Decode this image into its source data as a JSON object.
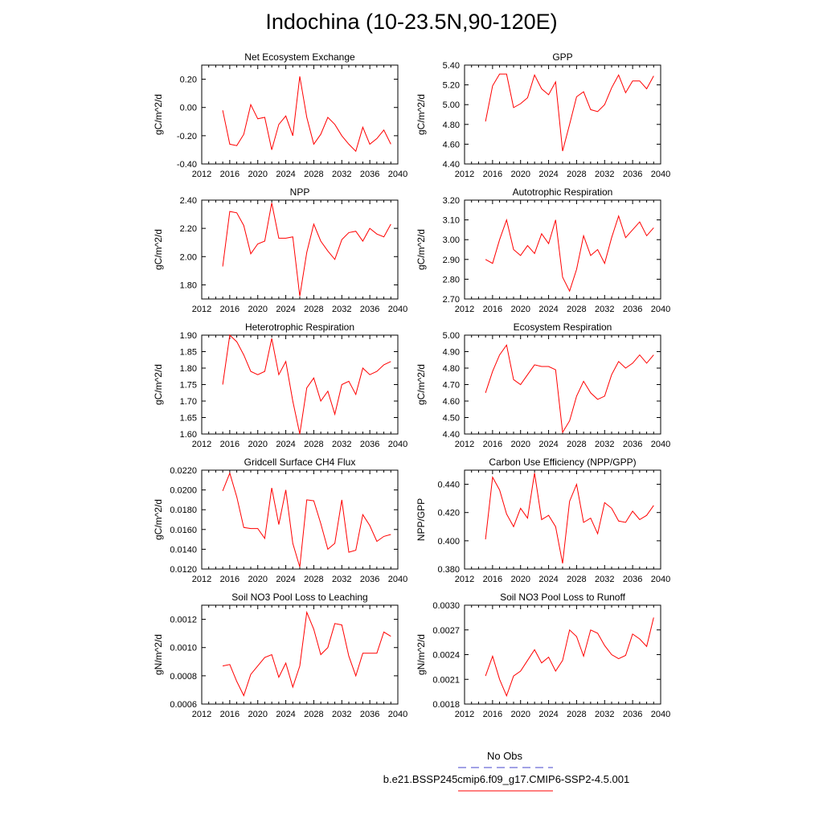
{
  "title": "Indochina (10-23.5N,90-120E)",
  "legend": {
    "obs_label": "No Obs",
    "obs_color": "#4444cc",
    "model_label": "b.e21.BSSP245cmip6.f09_g17.CMIP6-SSP2-4.5.001",
    "model_color": "#ff0000"
  },
  "chart_data": [
    {
      "type": "line",
      "title": "Net Ecosystem Exchange",
      "ylabel": "gC/m^2/d",
      "xlim": [
        2012,
        2040
      ],
      "xticks": [
        2012,
        2016,
        2020,
        2024,
        2028,
        2032,
        2036,
        2040
      ],
      "ylim": [
        -0.4,
        0.3
      ],
      "yticks": [
        "0.20",
        "0.00",
        "-0.20",
        "-0.40"
      ],
      "yticks_values": [
        0.2,
        0.0,
        -0.2,
        -0.4
      ],
      "x": [
        2015,
        2016,
        2017,
        2018,
        2019,
        2020,
        2021,
        2022,
        2023,
        2024,
        2025,
        2026,
        2027,
        2028,
        2029,
        2030,
        2031,
        2032,
        2033,
        2034,
        2035,
        2036,
        2037,
        2038,
        2039
      ],
      "series": [
        {
          "values": [
            -0.02,
            -0.26,
            -0.27,
            -0.19,
            0.02,
            -0.08,
            -0.07,
            -0.3,
            -0.12,
            -0.06,
            -0.2,
            0.22,
            -0.07,
            -0.26,
            -0.19,
            -0.07,
            -0.12,
            -0.2,
            -0.26,
            -0.31,
            -0.14,
            -0.26,
            -0.22,
            -0.16,
            -0.26
          ]
        }
      ]
    },
    {
      "type": "line",
      "title": "GPP",
      "ylabel": "gC/m^2/d",
      "xlim": [
        2012,
        2040
      ],
      "xticks": [
        2012,
        2016,
        2020,
        2024,
        2028,
        2032,
        2036,
        2040
      ],
      "ylim": [
        4.4,
        5.4
      ],
      "yticks": [
        "5.40",
        "5.20",
        "5.00",
        "4.80",
        "4.60",
        "4.40"
      ],
      "yticks_values": [
        5.4,
        5.2,
        5.0,
        4.8,
        4.6,
        4.4
      ],
      "x": [
        2015,
        2016,
        2017,
        2018,
        2019,
        2020,
        2021,
        2022,
        2023,
        2024,
        2025,
        2026,
        2027,
        2028,
        2029,
        2030,
        2031,
        2032,
        2033,
        2034,
        2035,
        2036,
        2037,
        2038,
        2039
      ],
      "series": [
        {
          "values": [
            4.83,
            5.19,
            5.31,
            5.31,
            4.97,
            5.01,
            5.07,
            5.3,
            5.16,
            5.1,
            5.23,
            4.53,
            4.8,
            5.08,
            5.13,
            4.95,
            4.93,
            5.0,
            5.17,
            5.3,
            5.12,
            5.24,
            5.24,
            5.16,
            5.29
          ]
        }
      ]
    },
    {
      "type": "line",
      "title": "NPP",
      "ylabel": "gC/m^2/d",
      "xlim": [
        2012,
        2040
      ],
      "xticks": [
        2012,
        2016,
        2020,
        2024,
        2028,
        2032,
        2036,
        2040
      ],
      "ylim": [
        1.7,
        2.4
      ],
      "yticks": [
        "2.40",
        "2.20",
        "2.00",
        "1.80"
      ],
      "yticks_values": [
        2.4,
        2.2,
        2.0,
        1.8
      ],
      "x": [
        2015,
        2016,
        2017,
        2018,
        2019,
        2020,
        2021,
        2022,
        2023,
        2024,
        2025,
        2026,
        2027,
        2028,
        2029,
        2030,
        2031,
        2032,
        2033,
        2034,
        2035,
        2036,
        2037,
        2038,
        2039
      ],
      "series": [
        {
          "values": [
            1.93,
            2.32,
            2.31,
            2.22,
            2.02,
            2.09,
            2.11,
            2.38,
            2.13,
            2.13,
            2.14,
            1.72,
            2.03,
            2.23,
            2.11,
            2.04,
            1.98,
            2.12,
            2.17,
            2.18,
            2.11,
            2.2,
            2.16,
            2.14,
            2.23
          ]
        }
      ]
    },
    {
      "type": "line",
      "title": "Autotrophic Respiration",
      "ylabel": "gC/m^2/d",
      "xlim": [
        2012,
        2040
      ],
      "xticks": [
        2012,
        2016,
        2020,
        2024,
        2028,
        2032,
        2036,
        2040
      ],
      "ylim": [
        2.7,
        3.2
      ],
      "yticks": [
        "3.20",
        "3.10",
        "3.00",
        "2.90",
        "2.80",
        "2.70"
      ],
      "yticks_values": [
        3.2,
        3.1,
        3.0,
        2.9,
        2.8,
        2.7
      ],
      "x": [
        2015,
        2016,
        2017,
        2018,
        2019,
        2020,
        2021,
        2022,
        2023,
        2024,
        2025,
        2026,
        2027,
        2028,
        2029,
        2030,
        2031,
        2032,
        2033,
        2034,
        2035,
        2036,
        2037,
        2038,
        2039
      ],
      "series": [
        {
          "values": [
            2.9,
            2.88,
            3.0,
            3.1,
            2.95,
            2.92,
            2.97,
            2.93,
            3.03,
            2.98,
            3.1,
            2.81,
            2.74,
            2.85,
            3.02,
            2.92,
            2.95,
            2.88,
            3.01,
            3.12,
            3.01,
            3.05,
            3.09,
            3.02,
            3.06
          ]
        }
      ]
    },
    {
      "type": "line",
      "title": "Heterotrophic Respiration",
      "ylabel": "gC/m^2/d",
      "xlim": [
        2012,
        2040
      ],
      "xticks": [
        2012,
        2016,
        2020,
        2024,
        2028,
        2032,
        2036,
        2040
      ],
      "ylim": [
        1.6,
        1.9
      ],
      "yticks": [
        "1.90",
        "1.85",
        "1.80",
        "1.75",
        "1.70",
        "1.65",
        "1.60"
      ],
      "yticks_values": [
        1.9,
        1.85,
        1.8,
        1.75,
        1.7,
        1.65,
        1.6
      ],
      "x": [
        2015,
        2016,
        2017,
        2018,
        2019,
        2020,
        2021,
        2022,
        2023,
        2024,
        2025,
        2026,
        2027,
        2028,
        2029,
        2030,
        2031,
        2032,
        2033,
        2034,
        2035,
        2036,
        2037,
        2038,
        2039
      ],
      "series": [
        {
          "values": [
            1.75,
            1.9,
            1.88,
            1.84,
            1.79,
            1.78,
            1.79,
            1.89,
            1.78,
            1.82,
            1.7,
            1.6,
            1.74,
            1.77,
            1.7,
            1.73,
            1.66,
            1.75,
            1.76,
            1.72,
            1.8,
            1.78,
            1.79,
            1.81,
            1.82
          ]
        }
      ]
    },
    {
      "type": "line",
      "title": "Ecosystem Respiration",
      "ylabel": "gC/m^2/d",
      "xlim": [
        2012,
        2040
      ],
      "xticks": [
        2012,
        2016,
        2020,
        2024,
        2028,
        2032,
        2036,
        2040
      ],
      "ylim": [
        4.4,
        5.0
      ],
      "yticks": [
        "5.00",
        "4.90",
        "4.80",
        "4.70",
        "4.60",
        "4.50",
        "4.40"
      ],
      "yticks_values": [
        5.0,
        4.9,
        4.8,
        4.7,
        4.6,
        4.5,
        4.4
      ],
      "x": [
        2015,
        2016,
        2017,
        2018,
        2019,
        2020,
        2021,
        2022,
        2023,
        2024,
        2025,
        2026,
        2027,
        2028,
        2029,
        2030,
        2031,
        2032,
        2033,
        2034,
        2035,
        2036,
        2037,
        2038,
        2039
      ],
      "series": [
        {
          "values": [
            4.65,
            4.78,
            4.88,
            4.94,
            4.73,
            4.7,
            4.76,
            4.82,
            4.81,
            4.81,
            4.79,
            4.41,
            4.48,
            4.63,
            4.72,
            4.65,
            4.61,
            4.63,
            4.76,
            4.84,
            4.8,
            4.83,
            4.88,
            4.83,
            4.88
          ]
        }
      ]
    },
    {
      "type": "line",
      "title": "Gridcell Surface CH4 Flux",
      "ylabel": "gC/m^2/d",
      "xlim": [
        2012,
        2040
      ],
      "xticks": [
        2012,
        2016,
        2020,
        2024,
        2028,
        2032,
        2036,
        2040
      ],
      "ylim": [
        0.012,
        0.022
      ],
      "yticks": [
        "0.0220",
        "0.0200",
        "0.0180",
        "0.0160",
        "0.0140",
        "0.0120"
      ],
      "yticks_values": [
        0.022,
        0.02,
        0.018,
        0.016,
        0.014,
        0.012
      ],
      "x": [
        2015,
        2016,
        2017,
        2018,
        2019,
        2020,
        2021,
        2022,
        2023,
        2024,
        2025,
        2026,
        2027,
        2028,
        2029,
        2030,
        2031,
        2032,
        2033,
        2034,
        2035,
        2036,
        2037,
        2038,
        2039
      ],
      "series": [
        {
          "values": [
            0.0199,
            0.0217,
            0.0193,
            0.0162,
            0.0161,
            0.0161,
            0.0151,
            0.0202,
            0.0165,
            0.02,
            0.0146,
            0.0122,
            0.019,
            0.0189,
            0.0166,
            0.014,
            0.0146,
            0.019,
            0.0137,
            0.0139,
            0.0175,
            0.0164,
            0.0148,
            0.0153,
            0.0155
          ]
        }
      ]
    },
    {
      "type": "line",
      "title": "Carbon Use Efficiency (NPP/GPP)",
      "ylabel": "NPP/GPP",
      "xlim": [
        2012,
        2040
      ],
      "xticks": [
        2012,
        2016,
        2020,
        2024,
        2028,
        2032,
        2036,
        2040
      ],
      "ylim": [
        0.38,
        0.45
      ],
      "yticks": [
        "0.440",
        "0.420",
        "0.400",
        "0.380"
      ],
      "yticks_values": [
        0.44,
        0.42,
        0.4,
        0.38
      ],
      "x": [
        2015,
        2016,
        2017,
        2018,
        2019,
        2020,
        2021,
        2022,
        2023,
        2024,
        2025,
        2026,
        2027,
        2028,
        2029,
        2030,
        2031,
        2032,
        2033,
        2034,
        2035,
        2036,
        2037,
        2038,
        2039
      ],
      "series": [
        {
          "values": [
            0.401,
            0.445,
            0.436,
            0.419,
            0.41,
            0.423,
            0.416,
            0.448,
            0.415,
            0.418,
            0.41,
            0.384,
            0.428,
            0.44,
            0.413,
            0.416,
            0.405,
            0.427,
            0.423,
            0.414,
            0.413,
            0.421,
            0.415,
            0.418,
            0.425
          ]
        }
      ]
    },
    {
      "type": "line",
      "title": "Soil NO3 Pool Loss to Leaching",
      "ylabel": "gN/m^2/d",
      "xlim": [
        2012,
        2040
      ],
      "xticks": [
        2012,
        2016,
        2020,
        2024,
        2028,
        2032,
        2036,
        2040
      ],
      "ylim": [
        0.0006,
        0.0013
      ],
      "yticks": [
        "0.0012",
        "0.0010",
        "0.0008",
        "0.0006"
      ],
      "yticks_values": [
        0.0012,
        0.001,
        0.0008,
        0.0006
      ],
      "x": [
        2015,
        2016,
        2017,
        2018,
        2019,
        2020,
        2021,
        2022,
        2023,
        2024,
        2025,
        2026,
        2027,
        2028,
        2029,
        2030,
        2031,
        2032,
        2033,
        2034,
        2035,
        2036,
        2037,
        2038,
        2039
      ],
      "series": [
        {
          "values": [
            0.00087,
            0.00088,
            0.00076,
            0.00066,
            0.00081,
            0.00087,
            0.00093,
            0.00095,
            0.00079,
            0.00089,
            0.00072,
            0.00087,
            0.00125,
            0.00113,
            0.00095,
            0.001,
            0.00117,
            0.00116,
            0.00094,
            0.0008,
            0.00096,
            0.00096,
            0.00096,
            0.00111,
            0.00108
          ]
        }
      ]
    },
    {
      "type": "line",
      "title": "Soil NO3 Pool Loss to Runoff",
      "ylabel": "gN/m^2/d",
      "xlim": [
        2012,
        2040
      ],
      "xticks": [
        2012,
        2016,
        2020,
        2024,
        2028,
        2032,
        2036,
        2040
      ],
      "ylim": [
        0.0018,
        0.003
      ],
      "yticks": [
        "0.0030",
        "0.0027",
        "0.0024",
        "0.0021",
        "0.0018"
      ],
      "yticks_values": [
        0.003,
        0.0027,
        0.0024,
        0.0021,
        0.0018
      ],
      "x": [
        2015,
        2016,
        2017,
        2018,
        2019,
        2020,
        2021,
        2022,
        2023,
        2024,
        2025,
        2026,
        2027,
        2028,
        2029,
        2030,
        2031,
        2032,
        2033,
        2034,
        2035,
        2036,
        2037,
        2038,
        2039
      ],
      "series": [
        {
          "values": [
            0.00214,
            0.00238,
            0.0021,
            0.0019,
            0.00214,
            0.0022,
            0.00233,
            0.00246,
            0.0023,
            0.00237,
            0.0022,
            0.00233,
            0.0027,
            0.00262,
            0.00238,
            0.0027,
            0.00266,
            0.00251,
            0.0024,
            0.00235,
            0.00239,
            0.00265,
            0.00259,
            0.0025,
            0.00285
          ]
        }
      ]
    }
  ]
}
